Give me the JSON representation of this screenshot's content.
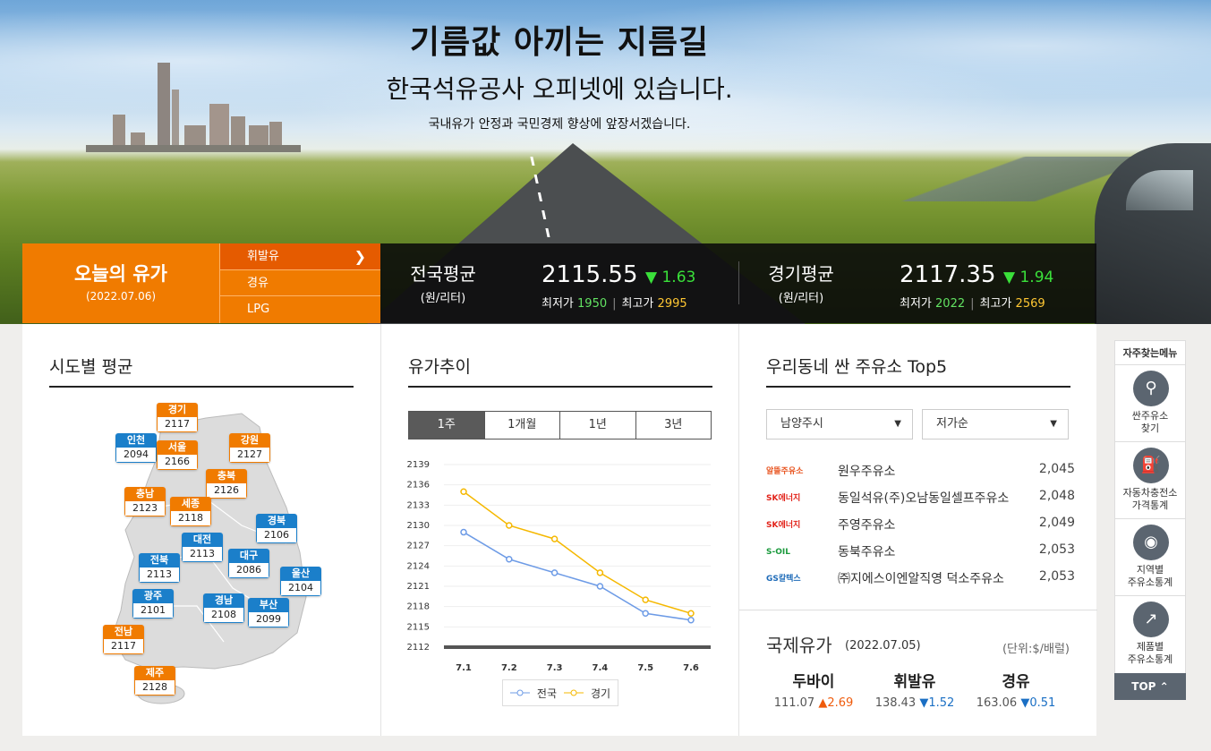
{
  "hero": {
    "title": "기름값 아끼는 지름길",
    "subtitle": "한국석유공사 오피넷에 있습니다.",
    "tagline": "국내유가 안정과 국민경제 향상에 앞장서겠습니다."
  },
  "today": {
    "label": "오늘의 유가",
    "date": "(2022.07.06)"
  },
  "fuel_tabs": [
    {
      "label": "휘발유",
      "active": true
    },
    {
      "label": "경유",
      "active": false
    },
    {
      "label": "LPG",
      "active": false
    }
  ],
  "national": {
    "name": "전국평균",
    "unit": "(원/리터)",
    "price": "2115.55",
    "change": "▼ 1.63",
    "min_label": "최저가",
    "min": "1950",
    "max_label": "최고가",
    "max": "2995"
  },
  "regional": {
    "name": "경기평균",
    "unit": "(원/리터)",
    "price": "2117.35",
    "change": "▼ 1.94",
    "min_label": "최저가",
    "min": "2022",
    "max_label": "최고가",
    "max": "2569"
  },
  "sido": {
    "title": "시도별 평균",
    "regions": [
      {
        "name": "경기",
        "value": "2117",
        "color": "o"
      },
      {
        "name": "인천",
        "value": "2094",
        "color": "b"
      },
      {
        "name": "서울",
        "value": "2166",
        "color": "o"
      },
      {
        "name": "강원",
        "value": "2127",
        "color": "o"
      },
      {
        "name": "충북",
        "value": "2126",
        "color": "o"
      },
      {
        "name": "충남",
        "value": "2123",
        "color": "o"
      },
      {
        "name": "세종",
        "value": "2118",
        "color": "o"
      },
      {
        "name": "경북",
        "value": "2106",
        "color": "b"
      },
      {
        "name": "대전",
        "value": "2113",
        "color": "b"
      },
      {
        "name": "전북",
        "value": "2113",
        "color": "b"
      },
      {
        "name": "대구",
        "value": "2086",
        "color": "b"
      },
      {
        "name": "울산",
        "value": "2104",
        "color": "b"
      },
      {
        "name": "광주",
        "value": "2101",
        "color": "b"
      },
      {
        "name": "경남",
        "value": "2108",
        "color": "b"
      },
      {
        "name": "부산",
        "value": "2099",
        "color": "b"
      },
      {
        "name": "전남",
        "value": "2117",
        "color": "o"
      },
      {
        "name": "제주",
        "value": "2128",
        "color": "o"
      }
    ]
  },
  "trend": {
    "title": "유가추이",
    "tabs": [
      {
        "label": "1주",
        "active": true
      },
      {
        "label": "1개월",
        "active": false
      },
      {
        "label": "1년",
        "active": false
      },
      {
        "label": "3년",
        "active": false
      }
    ],
    "legend": {
      "national": "전국",
      "regional": "경기"
    },
    "colors": {
      "national": "#6d9be6",
      "regional": "#f5b800"
    }
  },
  "chart_data": {
    "type": "line",
    "x": [
      "7.1",
      "7.2",
      "7.3",
      "7.4",
      "7.5",
      "7.6"
    ],
    "yticks": [
      2112,
      2115,
      2118,
      2121,
      2124,
      2127,
      2130,
      2133,
      2136,
      2139
    ],
    "ylim": [
      2112,
      2139
    ],
    "series": [
      {
        "name": "전국",
        "values": [
          2129,
          2125,
          2123,
          2121,
          2117,
          2116
        ]
      },
      {
        "name": "경기",
        "values": [
          2135,
          2130,
          2128,
          2123,
          2119,
          2117
        ]
      }
    ],
    "grid": true,
    "legend": "bottom"
  },
  "cheap": {
    "title": "우리동네 싼 주유소 Top5",
    "region_select": "남양주시",
    "sort_select": "저가순",
    "stations": [
      {
        "brand": "알뜰주유소",
        "brand_icon": "altteul-logo",
        "name": "원우주유소",
        "price": "2,045"
      },
      {
        "brand": "SK에너지",
        "brand_icon": "sk-logo",
        "name": "동일석유(주)오남동일셀프주유소",
        "price": "2,048"
      },
      {
        "brand": "SK에너지",
        "brand_icon": "sk-logo",
        "name": "주영주유소",
        "price": "2,049"
      },
      {
        "brand": "S-OIL",
        "brand_icon": "soil-logo",
        "name": "동북주유소",
        "price": "2,053"
      },
      {
        "brand": "GS칼텍스",
        "brand_icon": "gs-logo",
        "name": "㈜지에스이엔알직영 덕소주유소",
        "price": "2,053"
      }
    ]
  },
  "intl": {
    "title": "국제유가",
    "date": "(2022.07.05)",
    "unit": "(단위:$/배럴)",
    "items": [
      {
        "name": "두바이",
        "value": "111.07",
        "change": "▲2.69",
        "dir": "up"
      },
      {
        "name": "휘발유",
        "value": "138.43",
        "change": "▼1.52",
        "dir": "down"
      },
      {
        "name": "경유",
        "value": "163.06",
        "change": "▼0.51",
        "dir": "down"
      }
    ]
  },
  "quick_menu": {
    "title": "자주찾는메뉴",
    "items": [
      {
        "label1": "싼주유소",
        "label2": "찾기",
        "icon": "location-pin-icon"
      },
      {
        "label1": "자동차충전소",
        "label2": "가격통계",
        "icon": "ev-charger-icon"
      },
      {
        "label1": "지역별",
        "label2": "주유소통계",
        "icon": "korea-map-icon"
      },
      {
        "label1": "제품별",
        "label2": "주유소통계",
        "icon": "line-chart-icon"
      }
    ],
    "top_label": "TOP"
  }
}
